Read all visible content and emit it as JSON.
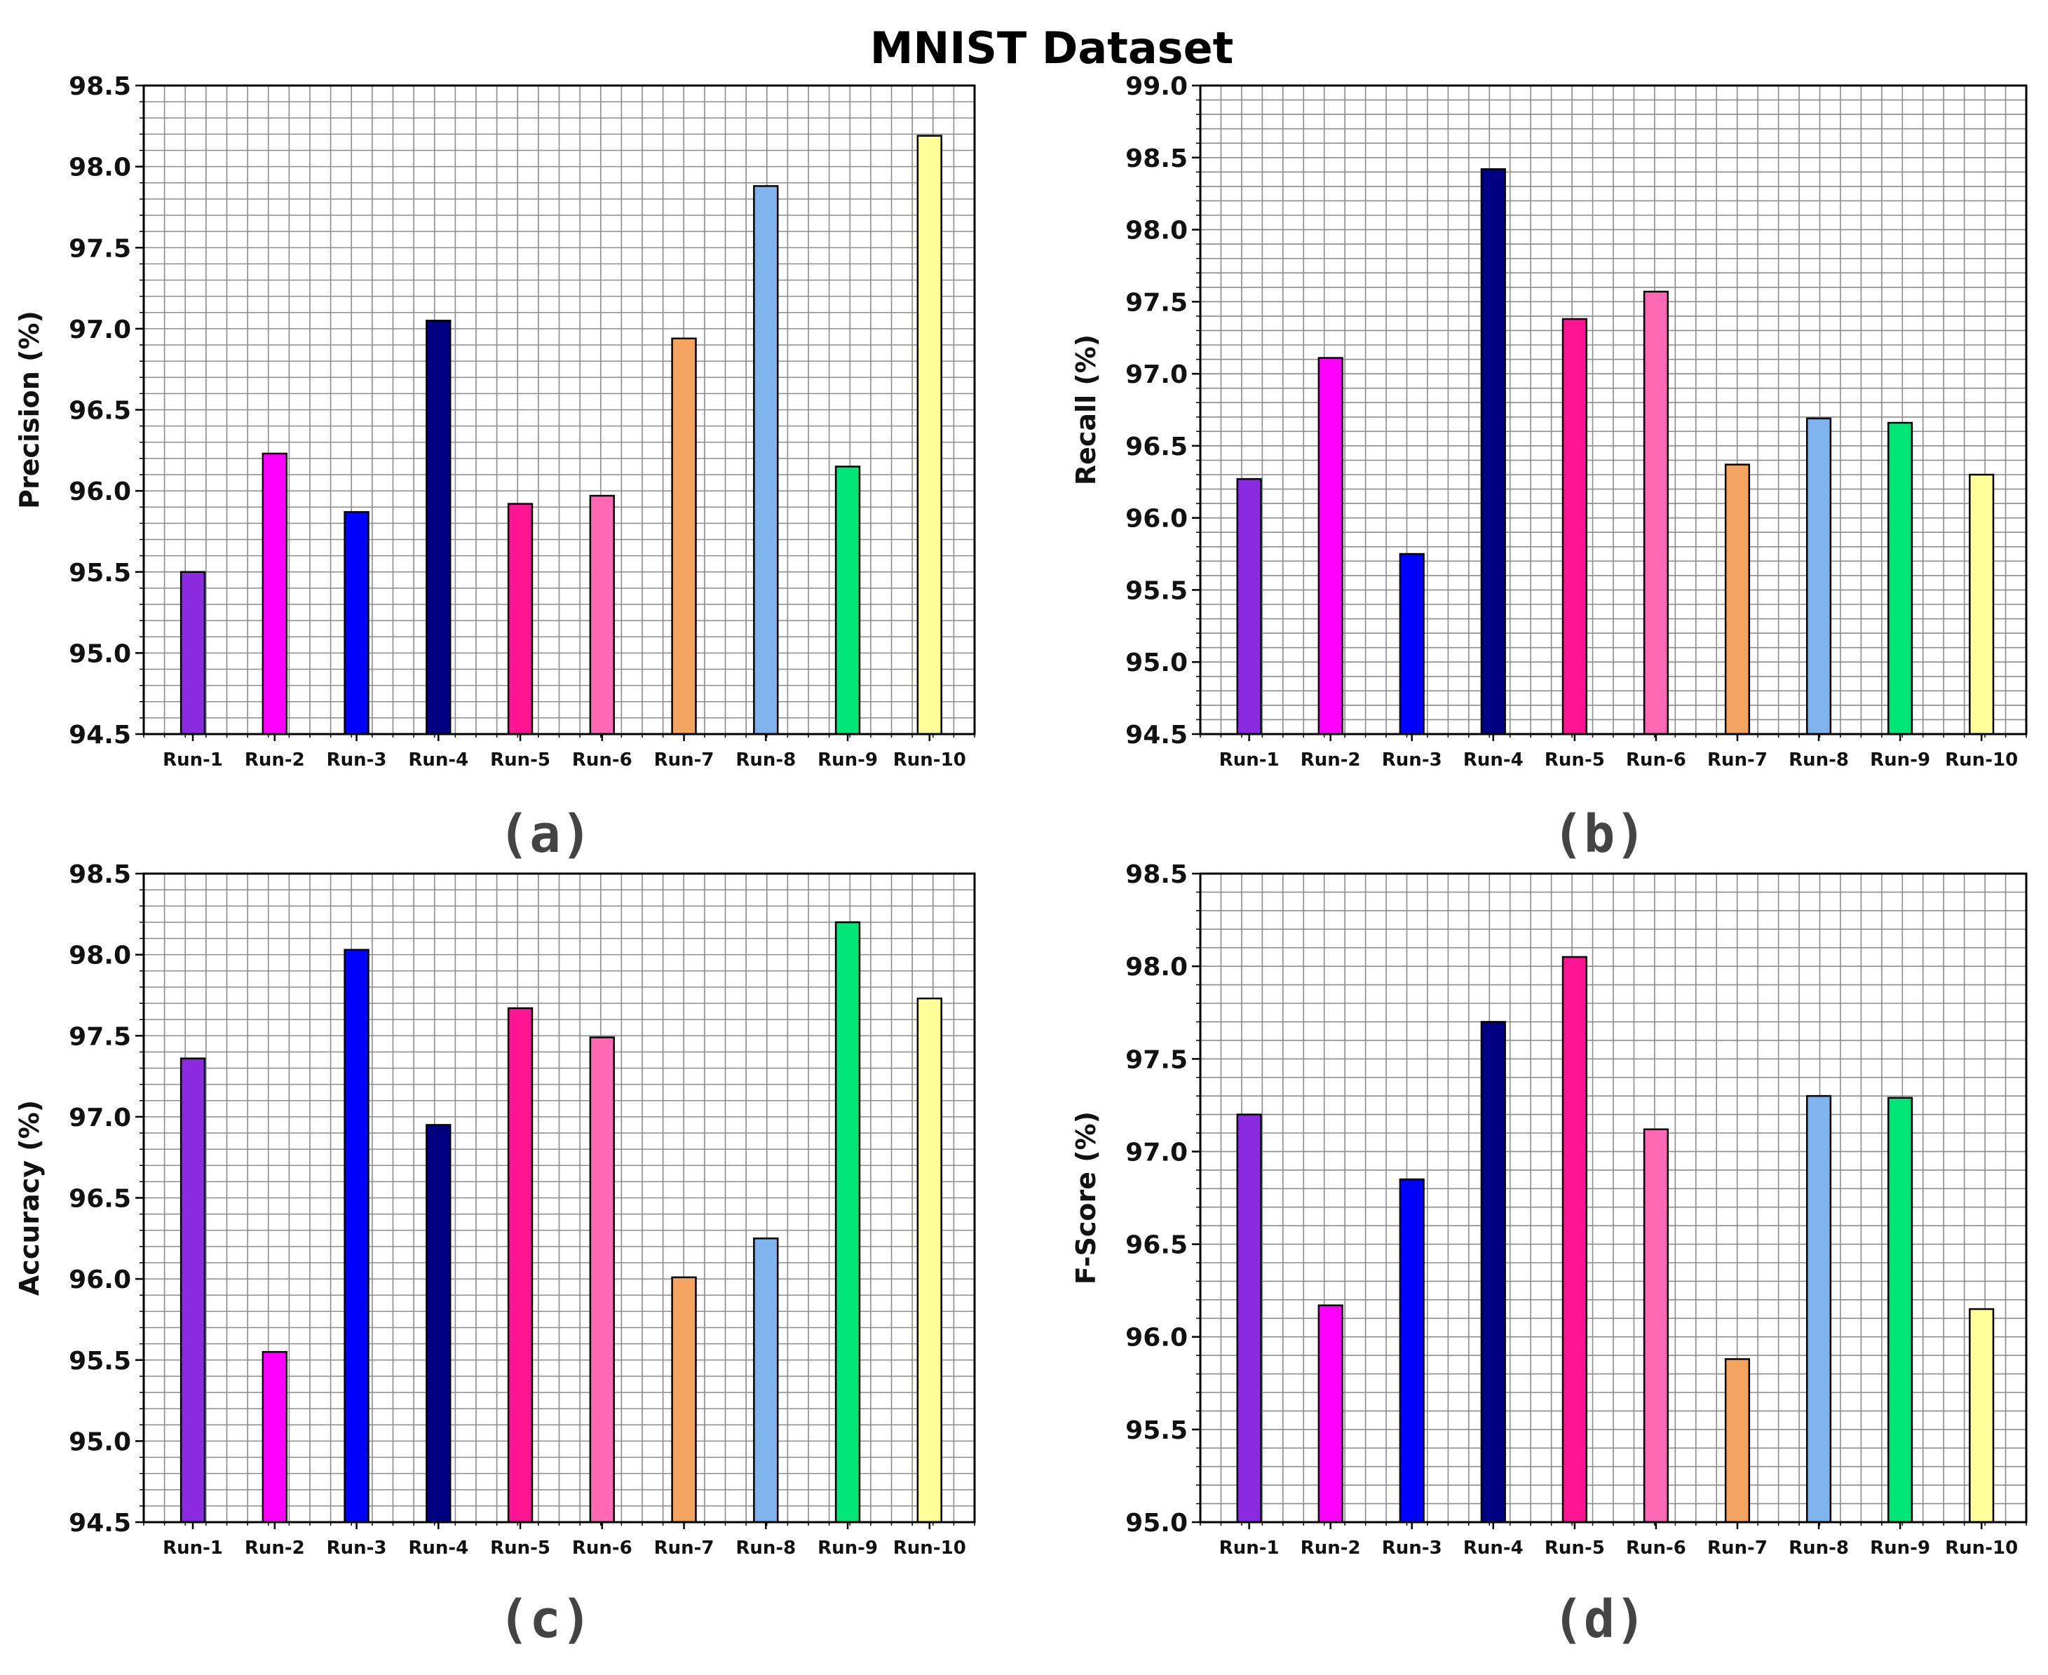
{
  "title": "MNIST Dataset",
  "bar_colors": [
    "#8a2be2",
    "#ff00ff",
    "#0000ff",
    "#000080",
    "#ff1493",
    "#ff69b4",
    "#f4a460",
    "#7eb3ee",
    "#00e676",
    "#ffff99"
  ],
  "chart_data": [
    {
      "type": "bar",
      "panel_label": "(a)",
      "title": "",
      "xlabel": "",
      "ylabel": "Precision (%)",
      "categories": [
        "Run-1",
        "Run-2",
        "Run-3",
        "Run-4",
        "Run-5",
        "Run-6",
        "Run-7",
        "Run-8",
        "Run-9",
        "Run-10"
      ],
      "values": [
        95.5,
        96.23,
        95.87,
        97.05,
        95.92,
        95.97,
        96.94,
        97.88,
        96.15,
        98.19
      ],
      "ylim": [
        94.5,
        98.5
      ],
      "yticks": [
        "94.5",
        "95.0",
        "95.5",
        "96.0",
        "96.5",
        "97.0",
        "97.5",
        "98.0",
        "98.5"
      ],
      "grid": true
    },
    {
      "type": "bar",
      "panel_label": "(b)",
      "title": "",
      "xlabel": "",
      "ylabel": "Recall (%)",
      "categories": [
        "Run-1",
        "Run-2",
        "Run-3",
        "Run-4",
        "Run-5",
        "Run-6",
        "Run-7",
        "Run-8",
        "Run-9",
        "Run-10"
      ],
      "values": [
        96.27,
        97.11,
        95.75,
        98.42,
        97.38,
        97.57,
        96.37,
        96.69,
        96.66,
        96.3
      ],
      "ylim": [
        94.5,
        99.0
      ],
      "yticks": [
        "94.5",
        "95.0",
        "95.5",
        "96.0",
        "96.5",
        "97.0",
        "97.5",
        "98.0",
        "98.5",
        "99.0"
      ],
      "grid": true
    },
    {
      "type": "bar",
      "panel_label": "(c)",
      "title": "",
      "xlabel": "",
      "ylabel": "Accuracy (%)",
      "categories": [
        "Run-1",
        "Run-2",
        "Run-3",
        "Run-4",
        "Run-5",
        "Run-6",
        "Run-7",
        "Run-8",
        "Run-9",
        "Run-10"
      ],
      "values": [
        97.36,
        95.55,
        98.03,
        96.95,
        97.67,
        97.49,
        96.01,
        96.25,
        98.2,
        97.73
      ],
      "ylim": [
        94.5,
        98.5
      ],
      "yticks": [
        "94.5",
        "95.0",
        "95.5",
        "96.0",
        "96.5",
        "97.0",
        "97.5",
        "98.0",
        "98.5"
      ],
      "grid": true
    },
    {
      "type": "bar",
      "panel_label": "(d)",
      "title": "",
      "xlabel": "",
      "ylabel": "F-Score (%)",
      "categories": [
        "Run-1",
        "Run-2",
        "Run-3",
        "Run-4",
        "Run-5",
        "Run-6",
        "Run-7",
        "Run-8",
        "Run-9",
        "Run-10"
      ],
      "values": [
        97.2,
        96.17,
        96.85,
        97.7,
        98.05,
        97.12,
        95.88,
        97.3,
        97.29,
        96.15
      ],
      "ylim": [
        95.0,
        98.5
      ],
      "yticks": [
        "95.0",
        "95.5",
        "96.0",
        "96.5",
        "97.0",
        "97.5",
        "98.0",
        "98.5"
      ],
      "grid": true
    }
  ]
}
